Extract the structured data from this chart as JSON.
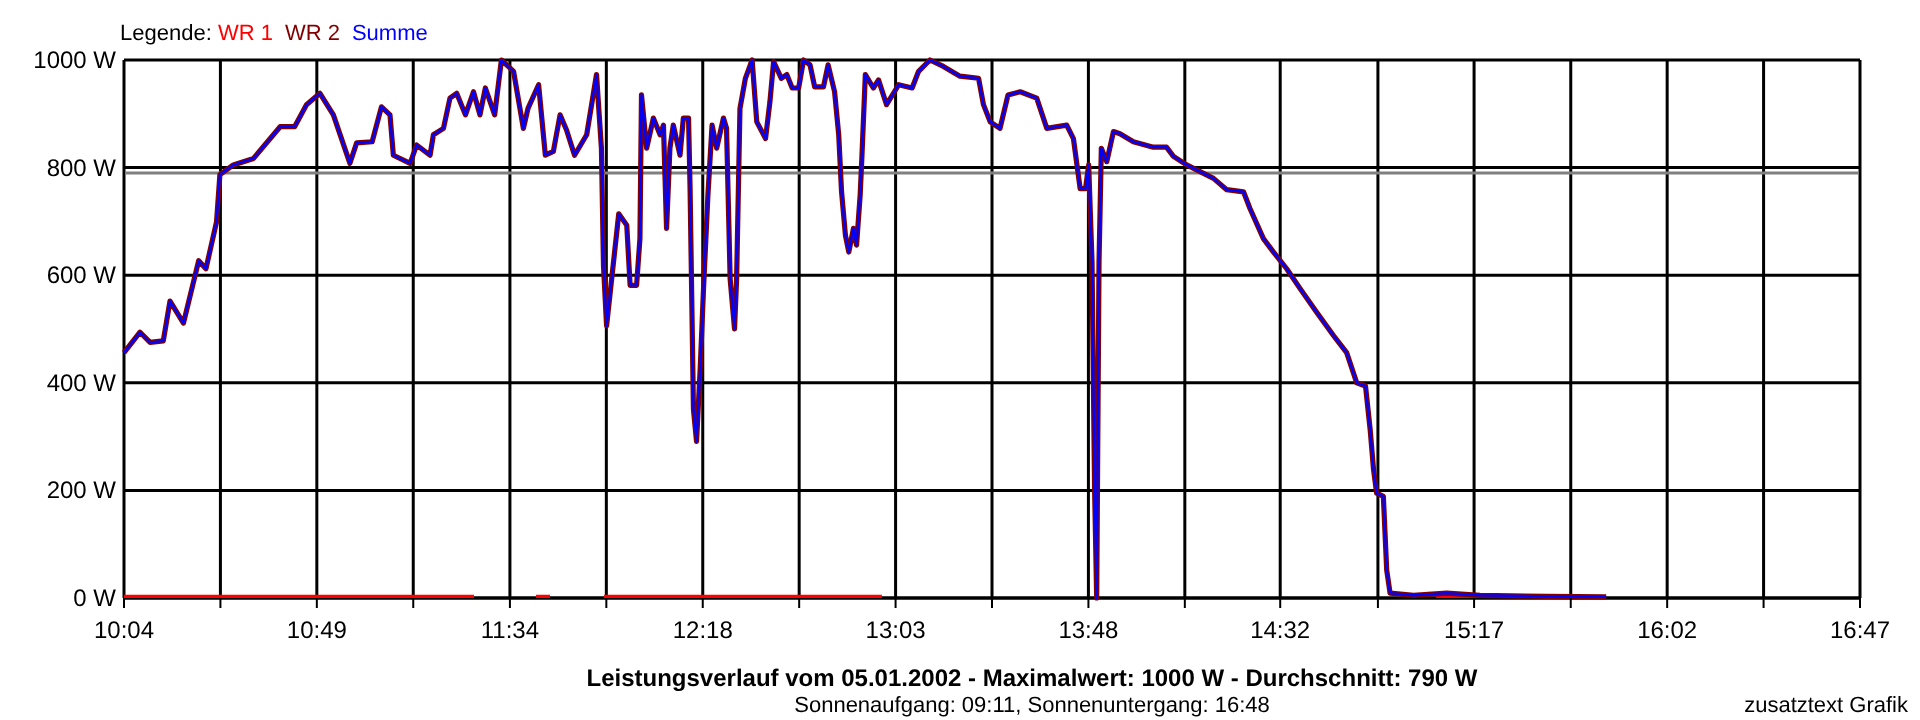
{
  "chart_data": {
    "type": "line",
    "title": "Leistungsverlauf vom 05.01.2002 - Maximalwert: 1000 W - Durchschnitt: 790 W",
    "subtitle": "Sonnenaufgang: 09:11, Sonnenuntergang: 16:48",
    "annotations": [
      "zusatztext Grafik"
    ],
    "legend_title": "Legende:",
    "legend": "top left",
    "grid": true,
    "xlim": [
      10.067,
      16.783
    ],
    "ylim": [
      0,
      1000
    ],
    "xticks": [
      {
        "value": 10.067,
        "label": "10:04"
      },
      {
        "value": 10.44,
        "label": null
      },
      {
        "value": 10.813,
        "label": "10:49"
      },
      {
        "value": 11.186,
        "label": null
      },
      {
        "value": 11.56,
        "label": "11:34"
      },
      {
        "value": 11.933,
        "label": null
      },
      {
        "value": 12.306,
        "label": "12:18"
      },
      {
        "value": 12.679,
        "label": null
      },
      {
        "value": 13.052,
        "label": "13:03"
      },
      {
        "value": 13.425,
        "label": null
      },
      {
        "value": 13.798,
        "label": "13:48"
      },
      {
        "value": 14.171,
        "label": null
      },
      {
        "value": 14.54,
        "label": "14:32"
      },
      {
        "value": 14.918,
        "label": null
      },
      {
        "value": 15.29,
        "label": "15:17"
      },
      {
        "value": 15.664,
        "label": null
      },
      {
        "value": 16.037,
        "label": "16:02"
      },
      {
        "value": 16.41,
        "label": null
      },
      {
        "value": 16.783,
        "label": "16:47"
      }
    ],
    "yticks": [
      {
        "value": 0,
        "label": "0 W"
      },
      {
        "value": 200,
        "label": "200 W"
      },
      {
        "value": 400,
        "label": "400 W"
      },
      {
        "value": 600,
        "label": "600 W"
      },
      {
        "value": 800,
        "label": "800 W"
      },
      {
        "value": 1000,
        "label": "1000 W"
      }
    ],
    "ref_lines": [
      {
        "axis": "y",
        "value": 790,
        "color": "#808080"
      }
    ],
    "series": [
      {
        "name": "WR 1",
        "color": "#ff0000",
        "x": [
          10.067,
          11.421,
          11.43,
          11.661,
          11.715,
          11.72,
          11.924,
          12.999,
          13.0,
          15.143,
          15.352
        ],
        "values": [
          3,
          3,
          null,
          3,
          3,
          null,
          3,
          3,
          null,
          3,
          3
        ]
      },
      {
        "name": "WR 2",
        "color": "#800000",
        "x": [
          10.067,
          10.129,
          10.168,
          10.219,
          10.245,
          10.297,
          10.356,
          10.384,
          10.425,
          10.438,
          10.49,
          10.568,
          10.671,
          10.727,
          10.773,
          10.825,
          10.877,
          10.941,
          10.967,
          11.027,
          11.063,
          11.096,
          11.109,
          11.174,
          11.199,
          11.251,
          11.264,
          11.303,
          11.328,
          11.354,
          11.388,
          11.419,
          11.444,
          11.465,
          11.501,
          11.527,
          11.574,
          11.612,
          11.63,
          11.671,
          11.697,
          11.728,
          11.754,
          11.779,
          11.81,
          11.857,
          11.895,
          11.914,
          11.922,
          11.934,
          11.981,
          12.012,
          12.025,
          12.05,
          12.063,
          12.069,
          12.089,
          12.115,
          12.141,
          12.154,
          12.166,
          12.179,
          12.192,
          12.218,
          12.231,
          12.251,
          12.257,
          12.27,
          12.282,
          12.296,
          12.309,
          12.326,
          12.342,
          12.36,
          12.386,
          12.398,
          12.412,
          12.429,
          12.437,
          12.45,
          12.471,
          12.497,
          12.515,
          12.549,
          12.566,
          12.58,
          12.61,
          12.631,
          12.652,
          12.677,
          12.696,
          12.721,
          12.739,
          12.773,
          12.791,
          12.816,
          12.832,
          12.843,
          12.858,
          12.871,
          12.889,
          12.901,
          12.915,
          12.922,
          12.935,
          12.966,
          12.986,
          13.017,
          13.064,
          13.116,
          13.141,
          13.185,
          13.237,
          13.301,
          13.373,
          13.392,
          13.418,
          13.456,
          13.487,
          13.534,
          13.598,
          13.637,
          13.714,
          13.74,
          13.766,
          13.787,
          13.799,
          13.812,
          13.822,
          13.83,
          13.839,
          13.848,
          13.869,
          13.895,
          13.92,
          13.972,
          14.049,
          14.1,
          14.127,
          14.178,
          14.282,
          14.333,
          14.398,
          14.423,
          14.475,
          14.514,
          14.565,
          14.617,
          14.681,
          14.746,
          14.797,
          14.836,
          14.87,
          14.888,
          14.901,
          14.913,
          14.939,
          14.952,
          14.965,
          15.056,
          15.184,
          15.313,
          15.571,
          15.801
        ],
        "values": [
          456,
          494,
          475,
          478,
          552,
          511,
          627,
          612,
          699,
          787,
          805,
          817,
          876,
          876,
          917,
          938,
          898,
          808,
          846,
          848,
          913,
          898,
          823,
          808,
          842,
          823,
          861,
          873,
          929,
          938,
          898,
          941,
          898,
          948,
          898,
          1000,
          979,
          873,
          910,
          954,
          823,
          830,
          898,
          870,
          823,
          861,
          973,
          836,
          618,
          506,
          714,
          693,
          581,
          581,
          668,
          935,
          836,
          892,
          861,
          879,
          687,
          836,
          879,
          823,
          892,
          892,
          761,
          351,
          291,
          425,
          575,
          749,
          879,
          836,
          892,
          873,
          593,
          500,
          593,
          910,
          966,
          1000,
          885,
          854,
          923,
          997,
          966,
          973,
          948,
          948,
          1000,
          991,
          950,
          950,
          991,
          941,
          861,
          755,
          674,
          643,
          687,
          656,
          749,
          823,
          973,
          948,
          963,
          917,
          954,
          948,
          979,
          1000,
          988,
          970,
          966,
          917,
          885,
          873,
          935,
          941,
          929,
          873,
          879,
          854,
          761,
          761,
          805,
          624,
          201,
          0,
          624,
          836,
          811,
          867,
          863,
          848,
          838,
          838,
          821,
          805,
          780,
          759,
          755,
          724,
          668,
          643,
          612,
          575,
          531,
          488,
          456,
          400,
          394,
          313,
          239,
          195,
          189,
          52,
          9,
          5,
          9,
          5,
          3,
          2
        ]
      },
      {
        "name": "Summe",
        "color": "#0000ff",
        "x": [
          10.067,
          10.129,
          10.168,
          10.219,
          10.245,
          10.297,
          10.356,
          10.384,
          10.425,
          10.438,
          10.49,
          10.568,
          10.671,
          10.727,
          10.773,
          10.825,
          10.877,
          10.941,
          10.967,
          11.027,
          11.063,
          11.096,
          11.109,
          11.174,
          11.199,
          11.251,
          11.264,
          11.303,
          11.328,
          11.354,
          11.388,
          11.419,
          11.444,
          11.465,
          11.501,
          11.527,
          11.574,
          11.612,
          11.63,
          11.671,
          11.697,
          11.728,
          11.754,
          11.779,
          11.81,
          11.857,
          11.895,
          11.914,
          11.922,
          11.934,
          11.981,
          12.012,
          12.025,
          12.05,
          12.063,
          12.069,
          12.089,
          12.115,
          12.141,
          12.154,
          12.166,
          12.179,
          12.192,
          12.218,
          12.231,
          12.251,
          12.257,
          12.27,
          12.282,
          12.296,
          12.309,
          12.326,
          12.342,
          12.36,
          12.386,
          12.398,
          12.412,
          12.429,
          12.437,
          12.45,
          12.471,
          12.497,
          12.515,
          12.549,
          12.566,
          12.58,
          12.61,
          12.631,
          12.652,
          12.677,
          12.696,
          12.721,
          12.739,
          12.773,
          12.791,
          12.816,
          12.832,
          12.843,
          12.858,
          12.871,
          12.889,
          12.901,
          12.915,
          12.922,
          12.935,
          12.966,
          12.986,
          13.017,
          13.064,
          13.116,
          13.141,
          13.185,
          13.237,
          13.301,
          13.373,
          13.392,
          13.418,
          13.456,
          13.487,
          13.534,
          13.598,
          13.637,
          13.714,
          13.74,
          13.766,
          13.787,
          13.799,
          13.812,
          13.822,
          13.83,
          13.839,
          13.848,
          13.869,
          13.895,
          13.92,
          13.972,
          14.049,
          14.1,
          14.127,
          14.178,
          14.282,
          14.333,
          14.398,
          14.423,
          14.475,
          14.514,
          14.565,
          14.617,
          14.681,
          14.746,
          14.797,
          14.836,
          14.87,
          14.888,
          14.901,
          14.913,
          14.939,
          14.952,
          14.965,
          15.056,
          15.184,
          15.313,
          15.571,
          15.801
        ],
        "values": [
          456,
          494,
          475,
          478,
          552,
          511,
          627,
          612,
          699,
          787,
          805,
          817,
          876,
          876,
          917,
          938,
          898,
          808,
          846,
          848,
          913,
          898,
          823,
          808,
          842,
          823,
          861,
          873,
          929,
          938,
          898,
          941,
          898,
          948,
          898,
          1000,
          979,
          873,
          910,
          954,
          823,
          830,
          898,
          870,
          823,
          861,
          973,
          836,
          618,
          506,
          714,
          693,
          581,
          581,
          668,
          935,
          836,
          892,
          861,
          879,
          687,
          836,
          879,
          823,
          892,
          892,
          761,
          351,
          291,
          425,
          575,
          749,
          879,
          836,
          892,
          873,
          593,
          500,
          593,
          910,
          966,
          1000,
          885,
          854,
          923,
          997,
          966,
          973,
          948,
          948,
          1000,
          991,
          950,
          950,
          991,
          941,
          861,
          755,
          674,
          643,
          687,
          656,
          749,
          823,
          973,
          948,
          963,
          917,
          954,
          948,
          979,
          1000,
          988,
          970,
          966,
          917,
          885,
          873,
          935,
          941,
          929,
          873,
          879,
          854,
          761,
          761,
          805,
          624,
          201,
          0,
          624,
          836,
          811,
          867,
          863,
          848,
          838,
          838,
          821,
          805,
          780,
          759,
          755,
          724,
          668,
          643,
          612,
          575,
          531,
          488,
          456,
          400,
          394,
          313,
          239,
          195,
          189,
          52,
          9,
          5,
          9,
          5,
          3,
          2
        ]
      }
    ]
  }
}
